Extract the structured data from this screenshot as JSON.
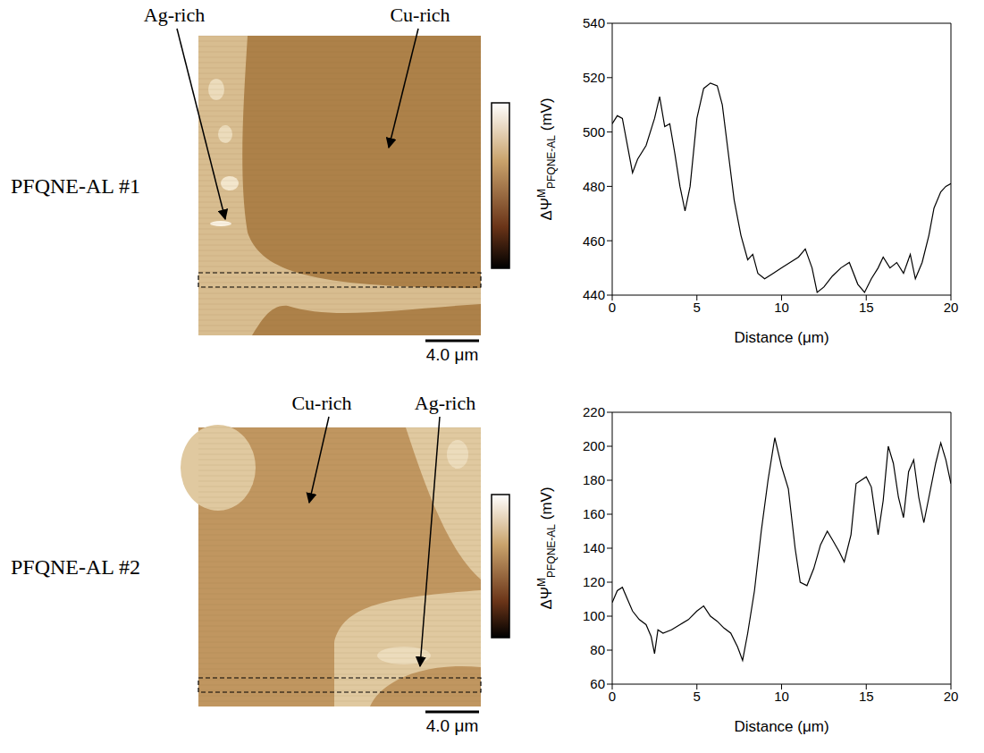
{
  "chart_data": [
    {
      "type": "line",
      "title": "PFQNE-AL #1",
      "annotations": [
        "Ag-rich",
        "Cu-rich"
      ],
      "scale_bar": "4.0 μm",
      "xlabel": "Distance (μm)",
      "ylabel": {
        "base": "ΔΨ",
        "sup": "M",
        "sub": "PFQNE-AL",
        "unit": "(mV)"
      },
      "color": "#000000",
      "x": [
        0,
        0.3,
        0.6,
        0.9,
        1.2,
        1.5,
        2.0,
        2.5,
        2.8,
        3.1,
        3.4,
        3.7,
        4.0,
        4.3,
        4.6,
        5.0,
        5.4,
        5.8,
        6.2,
        6.5,
        6.8,
        7.2,
        7.6,
        8.0,
        8.3,
        8.6,
        9.0,
        9.5,
        10.0,
        10.5,
        11.0,
        11.4,
        11.8,
        12.1,
        12.5,
        13.0,
        13.5,
        14.0,
        14.5,
        14.9,
        15.3,
        15.7,
        16.0,
        16.4,
        16.8,
        17.2,
        17.6,
        17.9,
        18.3,
        18.7,
        19.0,
        19.4,
        19.7,
        20.0
      ],
      "values": [
        503,
        506,
        505,
        495,
        485,
        490,
        495,
        505,
        513,
        502,
        503,
        492,
        480,
        471,
        480,
        505,
        516,
        518,
        517,
        510,
        495,
        475,
        462,
        453,
        455,
        448,
        446,
        448,
        450,
        452,
        454,
        457,
        450,
        441,
        443,
        447,
        450,
        452,
        444,
        441,
        446,
        450,
        454,
        450,
        452,
        448,
        455,
        446,
        452,
        462,
        472,
        478,
        480,
        481
      ],
      "xlim": [
        0,
        20
      ],
      "xticks": [
        0,
        5,
        10,
        15,
        20
      ],
      "ylim": [
        440,
        540
      ],
      "yticks": [
        440,
        460,
        480,
        500,
        520,
        540
      ]
    },
    {
      "type": "line",
      "title": "PFQNE-AL #2",
      "annotations": [
        "Cu-rich",
        "Ag-rich"
      ],
      "scale_bar": "4.0 μm",
      "xlabel": "Distance (μm)",
      "ylabel": {
        "base": "ΔΨ",
        "sup": "M",
        "sub": "PFQNE-AL",
        "unit": "(mV)"
      },
      "color": "#000000",
      "x": [
        0,
        0.3,
        0.6,
        0.9,
        1.2,
        1.6,
        2.0,
        2.3,
        2.5,
        2.7,
        3.0,
        3.5,
        4.0,
        4.5,
        5.0,
        5.4,
        5.8,
        6.2,
        6.6,
        7.0,
        7.4,
        7.7,
        8.0,
        8.4,
        8.8,
        9.2,
        9.6,
        10.0,
        10.4,
        10.8,
        11.1,
        11.5,
        11.9,
        12.3,
        12.7,
        13.0,
        13.4,
        13.7,
        14.1,
        14.4,
        14.7,
        15.0,
        15.3,
        15.7,
        16.0,
        16.3,
        16.6,
        16.9,
        17.2,
        17.5,
        17.8,
        18.1,
        18.4,
        18.7,
        19.1,
        19.4,
        19.7,
        20.0
      ],
      "values": [
        108,
        115,
        117,
        110,
        103,
        98,
        95,
        88,
        78,
        92,
        90,
        92,
        95,
        98,
        103,
        106,
        100,
        97,
        93,
        90,
        82,
        74,
        90,
        115,
        150,
        180,
        205,
        188,
        175,
        140,
        120,
        118,
        128,
        142,
        150,
        145,
        138,
        132,
        148,
        178,
        180,
        182,
        176,
        148,
        168,
        200,
        190,
        170,
        158,
        185,
        192,
        170,
        155,
        170,
        190,
        202,
        192,
        178
      ],
      "xlim": [
        0,
        20
      ],
      "xticks": [
        0,
        5,
        10,
        15,
        20
      ],
      "ylim": [
        60,
        220
      ],
      "yticks": [
        60,
        80,
        100,
        120,
        140,
        160,
        180,
        200,
        220
      ]
    }
  ]
}
